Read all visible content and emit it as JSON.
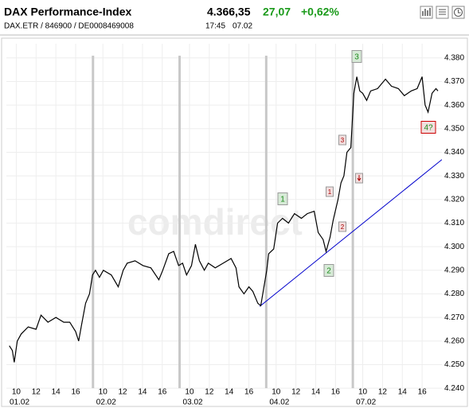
{
  "header": {
    "title": "DAX Performance-Index",
    "price": "4.366,35",
    "change": "27,07",
    "change_pct": "+0,62%",
    "ids": "DAX.ETR  /  846900  /  DE0008469008",
    "time": "17:45",
    "date": "07.02"
  },
  "chart_data": {
    "type": "line",
    "color": "#000000",
    "grid": true,
    "watermark": "comdirect",
    "x": [
      0.3,
      0.6,
      0.8,
      1.1,
      1.5,
      2.2,
      3.0,
      3.5,
      4.2,
      5.0,
      5.8,
      6.4,
      7.0,
      7.3,
      7.6,
      8.0,
      8.4,
      8.7,
      9.0,
      9.4,
      9.8,
      10.6,
      11.3,
      11.8,
      12.2,
      13.0,
      13.8,
      14.6,
      15.4,
      15.8,
      16.4,
      16.9,
      17.4,
      17.8,
      18.2,
      18.7,
      19.1,
      19.5,
      20.0,
      20.4,
      21.1,
      21.9,
      22.7,
      23.2,
      23.5,
      24.0,
      24.5,
      24.9,
      25.4,
      25.7,
      26.3,
      26.5,
      27.0,
      27.4,
      27.9,
      28.5,
      29.1,
      29.8,
      30.4,
      31.1,
      31.5,
      32.0,
      32.3,
      32.7,
      33.0,
      33.5,
      33.8,
      34.1,
      34.4,
      34.8,
      35.1,
      35.4,
      35.7,
      36.0,
      36.4,
      36.8,
      37.5,
      38.3,
      38.9,
      39.6,
      40.2,
      40.9,
      41.5,
      42.0,
      42.3,
      42.6,
      43.0,
      43.4,
      43.6
    ],
    "values": [
      4258,
      4256,
      4251,
      4260,
      4263,
      4266,
      4265,
      4271,
      4268,
      4270,
      4268,
      4268,
      4264,
      4260,
      4267,
      4276,
      4280,
      4288,
      4290,
      4287,
      4290,
      4288,
      4283,
      4290,
      4293,
      4294,
      4292,
      4291,
      4286,
      4290,
      4297,
      4298,
      4292,
      4293,
      4288,
      4292,
      4301,
      4294,
      4290,
      4293,
      4291,
      4293,
      4295,
      4291,
      4283,
      4280,
      4283,
      4281,
      4276,
      4275,
      4290,
      4297,
      4299,
      4310,
      4312,
      4310,
      4314,
      4312,
      4314,
      4315,
      4306,
      4303,
      4298,
      4304,
      4311,
      4320,
      4327,
      4330,
      4340,
      4342,
      4365,
      4372,
      4366,
      4365,
      4362,
      4366,
      4367,
      4371,
      4368,
      4367,
      4364,
      4366,
      4367,
      4372,
      4360,
      4357,
      4365,
      4367,
      4366
    ],
    "trendline": {
      "x": [
        25.6,
        44.0
      ],
      "values": [
        4274.7,
        4336.9
      ],
      "color": "#0000cc"
    },
    "xlim": [
      0,
      44
    ],
    "ylim": [
      4236,
      4386
    ],
    "yticks": [
      {
        "value": 4240,
        "label": "4.240"
      },
      {
        "value": 4250,
        "label": "4.250"
      },
      {
        "value": 4260,
        "label": "4.260"
      },
      {
        "value": 4270,
        "label": "4.270"
      },
      {
        "value": 4280,
        "label": "4.280"
      },
      {
        "value": 4290,
        "label": "4.290"
      },
      {
        "value": 4300,
        "label": "4.300"
      },
      {
        "value": 4310,
        "label": "4.310"
      },
      {
        "value": 4320,
        "label": "4.320"
      },
      {
        "value": 4330,
        "label": "4.330"
      },
      {
        "value": 4340,
        "label": "4.340"
      },
      {
        "value": 4350,
        "label": "4.350"
      },
      {
        "value": 4360,
        "label": "4.360"
      },
      {
        "value": 4370,
        "label": "4.370"
      },
      {
        "value": 4380,
        "label": "4.380"
      }
    ],
    "xticks": [
      {
        "value": 1,
        "label": "10"
      },
      {
        "value": 3,
        "label": "12"
      },
      {
        "value": 5,
        "label": "14"
      },
      {
        "value": 7,
        "label": "16"
      },
      {
        "value": 9.75,
        "label": "10"
      },
      {
        "value": 11.75,
        "label": "12"
      },
      {
        "value": 13.75,
        "label": "14"
      },
      {
        "value": 15.75,
        "label": "16"
      },
      {
        "value": 18.5,
        "label": "10"
      },
      {
        "value": 20.5,
        "label": "12"
      },
      {
        "value": 22.5,
        "label": "14"
      },
      {
        "value": 24.5,
        "label": "16"
      },
      {
        "value": 27.25,
        "label": "10"
      },
      {
        "value": 29.25,
        "label": "12"
      },
      {
        "value": 31.25,
        "label": "14"
      },
      {
        "value": 33.25,
        "label": "16"
      },
      {
        "value": 36,
        "label": "10"
      },
      {
        "value": 38,
        "label": "12"
      },
      {
        "value": 40,
        "label": "14"
      },
      {
        "value": 42,
        "label": "16"
      }
    ],
    "day_labels": [
      {
        "value": 0,
        "label": "01.02"
      },
      {
        "value": 8.75,
        "label": "02.02"
      },
      {
        "value": 17.5,
        "label": "03.02"
      },
      {
        "value": 26.25,
        "label": "04.02"
      },
      {
        "value": 35,
        "label": "07.02"
      }
    ],
    "annotations": [
      "1",
      "2",
      "3",
      "4?",
      "1",
      "3",
      "2"
    ]
  }
}
